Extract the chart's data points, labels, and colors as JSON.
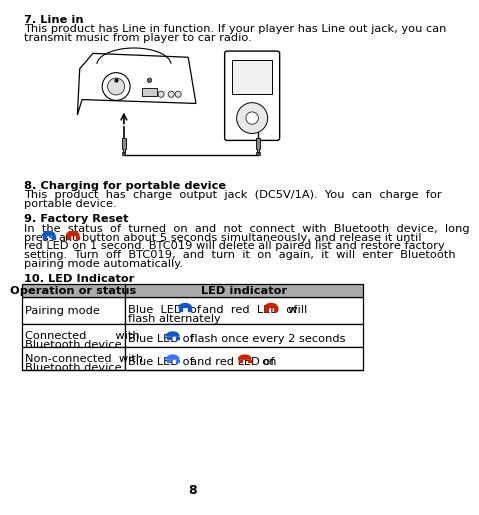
{
  "title_7": "7. Line in",
  "text_7_line1": "This product has Line in function. If your player has Line out jack, you can",
  "text_7_line2": "transmit music from player to car radio.",
  "title_8": "8. Charging for portable device",
  "text_8_line1": "This  product  has  charge  output  jack  (DC5V/1A).  You  can  charge  for",
  "text_8_line2": "portable device.",
  "title_9": "9. Factory Reset",
  "text_9_line1": "In  the  status  of  turned  on  and  not  connect  with  Bluetooth  device,  long",
  "text_9_line2a": "press",
  "text_9_line2b": "and",
  "text_9_line2c": "button about 5 seconds simultaneously, and release it until",
  "text_9_line3": "red LED on 1 second. BTC019 will delete all paired list and restore factory",
  "text_9_line4": "setting.  Turn  off  BTC019,  and  turn  it  on  again,  it  will  enter  Bluetooth",
  "text_9_line5": "pairing mode automatically.",
  "title_10": "10. LED Indicator",
  "table_header": [
    "Operation or status",
    "LED indicator"
  ],
  "table_row1_left": "Pairing mode",
  "table_row1_right_pre": "Blue  LED  of ",
  "table_row1_right_mid": "  and  red  LED  of ",
  "table_row1_right_post": "  will",
  "table_row1_right_line2": "flash alternately",
  "table_row2_left_line1": "Connected        with",
  "table_row2_left_line2": "Bluetooth device",
  "table_row2_right_pre": "Blue LED of ",
  "table_row2_right_post": "  flash once every 2 seconds",
  "table_row3_left_line1": "Non-connected  with",
  "table_row3_left_line2": "Bluetooth device",
  "table_row3_right_pre": "Blue LED of ",
  "table_row3_right_mid": "  and red LED of ",
  "table_row3_right_post": "  on",
  "page_number": "8",
  "bg_color": "#ffffff",
  "text_color": "#000000",
  "header_bg": "#aaaaaa",
  "icon_blue": "#1155cc",
  "icon_blue2": "#3377ff",
  "icon_red": "#cc2200"
}
